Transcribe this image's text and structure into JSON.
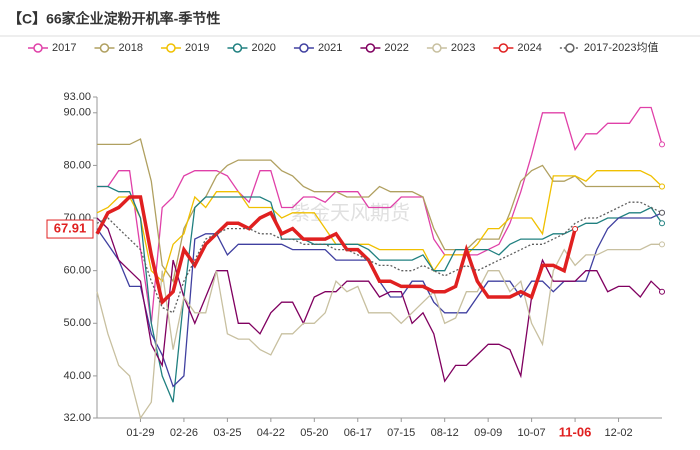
{
  "chart_data": {
    "type": "line",
    "title": "【C】66家企业淀粉开机率-季节性",
    "watermark": "紫金天风期货",
    "categories": [
      null,
      null,
      null,
      null,
      "01-29",
      null,
      null,
      null,
      "02-26",
      null,
      null,
      null,
      "03-25",
      null,
      null,
      null,
      "04-22",
      null,
      null,
      null,
      "05-20",
      null,
      null,
      null,
      "06-17",
      null,
      null,
      null,
      "07-15",
      null,
      null,
      null,
      "08-12",
      null,
      null,
      null,
      "09-09",
      null,
      null,
      null,
      "10-07",
      null,
      null,
      null,
      "11-06",
      null,
      null,
      null,
      "12-02",
      null,
      null,
      null,
      null
    ],
    "ylim": [
      32,
      93
    ],
    "yticks": [
      {
        "value": 32,
        "label": "32.00"
      },
      {
        "value": 40,
        "label": "40.00"
      },
      {
        "value": 50,
        "label": "50.00"
      },
      {
        "value": 60,
        "label": "60.00"
      },
      {
        "value": 70,
        "label": "70.00"
      },
      {
        "value": 80,
        "label": "80.00"
      },
      {
        "value": 90,
        "label": "90.00"
      },
      {
        "value": 93,
        "label": "93.00"
      }
    ],
    "grid": false,
    "series": [
      {
        "name": "2017",
        "color": "#e040a8",
        "values": [
          76,
          76,
          79,
          79,
          64,
          50,
          72,
          74,
          78,
          79,
          79,
          79,
          78,
          75,
          73,
          79,
          79,
          72,
          72,
          74,
          74,
          73,
          75,
          75,
          75,
          72,
          72,
          72,
          74,
          74,
          74,
          66,
          63,
          63,
          63,
          63,
          64,
          65,
          69,
          75,
          82,
          90,
          90,
          90,
          83,
          86,
          86,
          88,
          88,
          88,
          91,
          91,
          84
        ]
      },
      {
        "name": "2018",
        "color": "#b0a060",
        "values": [
          84,
          84,
          84,
          84,
          85,
          77,
          61,
          58,
          68,
          72,
          74,
          78,
          80,
          81,
          81,
          81,
          81,
          79,
          78,
          76,
          75,
          75,
          75,
          74,
          74,
          74,
          76,
          75,
          75,
          75,
          74,
          68,
          64,
          64,
          64,
          66,
          66,
          66,
          71,
          77,
          79,
          80,
          77,
          77,
          78,
          76,
          76,
          76,
          76,
          76,
          76,
          76,
          76
        ]
      },
      {
        "name": "2019",
        "color": "#f0c000",
        "values": [
          71,
          72,
          74,
          74,
          70,
          60,
          58,
          65,
          67,
          74,
          72,
          75,
          75,
          75,
          72,
          72,
          72,
          70,
          71,
          71,
          71,
          68,
          65,
          65,
          65,
          65,
          64,
          64,
          64,
          64,
          64,
          60,
          63,
          63,
          63,
          65,
          68,
          68,
          70,
          70,
          70,
          67,
          78,
          78,
          78,
          77,
          79,
          79,
          79,
          79,
          79,
          78,
          76
        ]
      },
      {
        "name": "2020",
        "color": "#208080",
        "values": [
          76,
          76,
          75,
          75,
          70,
          50,
          40,
          35,
          55,
          72,
          74,
          74,
          74,
          74,
          74,
          74,
          73,
          66,
          66,
          66,
          65,
          65,
          65,
          65,
          65,
          64,
          62,
          62,
          62,
          62,
          63,
          60,
          60,
          64,
          64,
          64,
          64,
          63,
          65,
          66,
          66,
          66,
          67,
          67,
          68,
          69,
          69,
          70,
          70,
          71,
          71,
          72,
          69
        ]
      },
      {
        "name": "2021",
        "color": "#4040a0",
        "values": [
          68,
          65,
          62,
          57,
          57,
          48,
          44,
          38,
          40,
          66,
          67,
          67,
          63,
          65,
          65,
          65,
          65,
          65,
          64,
          64,
          64,
          64,
          62,
          62,
          62,
          62,
          58,
          55,
          55,
          58,
          58,
          54,
          52,
          52,
          52,
          55,
          58,
          58,
          58,
          55,
          58,
          58,
          56,
          58,
          58,
          58,
          64,
          68,
          70,
          70,
          70,
          70,
          71
        ]
      },
      {
        "name": "2022",
        "color": "#800060",
        "values": [
          70,
          68,
          62,
          60,
          58,
          46,
          42,
          62,
          55,
          50,
          55,
          60,
          60,
          50,
          50,
          48,
          52,
          54,
          54,
          50,
          55,
          56,
          56,
          58,
          58,
          58,
          55,
          56,
          56,
          50,
          52,
          48,
          39,
          42,
          42,
          44,
          46,
          46,
          45,
          40,
          55,
          62,
          58,
          58,
          58,
          60,
          60,
          56,
          57,
          57,
          55,
          58,
          56
        ]
      },
      {
        "name": "2023",
        "color": "#c8c0a0",
        "values": [
          56,
          48,
          42,
          40,
          32,
          35,
          60,
          45,
          55,
          52,
          52,
          60,
          48,
          47,
          47,
          45,
          44,
          48,
          48,
          50,
          50,
          52,
          58,
          56,
          57,
          52,
          52,
          52,
          50,
          52,
          54,
          56,
          50,
          51,
          56,
          56,
          60,
          60,
          56,
          58,
          50,
          46,
          60,
          64,
          61,
          63,
          63,
          64,
          64,
          64,
          64,
          65,
          65
        ]
      },
      {
        "name": "2024",
        "color": "#e02020",
        "values": [
          67,
          71,
          72,
          74,
          74,
          63,
          54,
          56,
          64,
          61,
          65,
          67,
          69,
          69,
          68,
          70,
          71,
          67,
          68,
          66,
          66,
          66,
          67,
          64,
          64,
          62,
          58,
          58,
          57,
          57,
          57,
          56,
          56,
          57,
          64,
          58,
          55,
          55,
          55,
          56,
          55,
          61,
          61,
          60,
          67.91,
          null,
          null,
          null,
          null,
          null,
          null,
          null,
          null
        ]
      },
      {
        "name": "2017-2023均值",
        "color": "#606060",
        "values": [
          69,
          70,
          68,
          66,
          64,
          58,
          53,
          52,
          58,
          62,
          66,
          67,
          68,
          68,
          68,
          67,
          67,
          66,
          66,
          65,
          65,
          65,
          64,
          64,
          63,
          62,
          61,
          61,
          60,
          60,
          61,
          60,
          59,
          60,
          61,
          60,
          61,
          62,
          63,
          64,
          65,
          65,
          66,
          67,
          69,
          70,
          70,
          71,
          72,
          73,
          73,
          72,
          71
        ]
      }
    ]
  }
}
